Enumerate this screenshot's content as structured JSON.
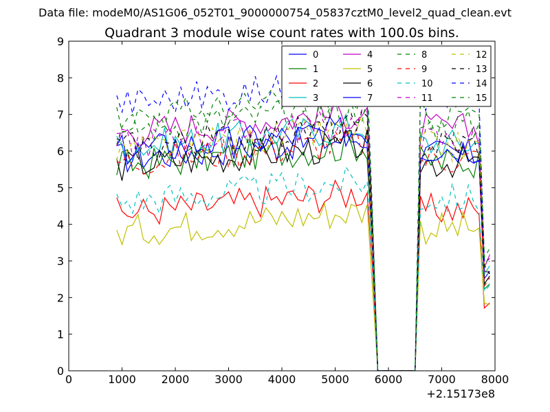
{
  "chart_data": {
    "type": "line",
    "suptitle": "Data file: modeM0/AS1G06_052T01_9000000754_05837cztM0_level2_quad_clean.evt",
    "title": "Quadrant 3 module wise count rates with 100.0s bins.",
    "xlabel": "",
    "ylabel": "",
    "x_offset_label": "+2.15173e8",
    "xlim": [
      0,
      8000
    ],
    "ylim": [
      0,
      9
    ],
    "x_ticks": [
      "0",
      "1000",
      "2000",
      "3000",
      "4000",
      "5000",
      "6000",
      "7000",
      "8000"
    ],
    "y_ticks": [
      "0",
      "1",
      "2",
      "3",
      "4",
      "5",
      "6",
      "7",
      "8",
      "9"
    ],
    "grid": false,
    "legend_position": "top-right",
    "gap": {
      "start": 5800,
      "end": 6500
    },
    "x_start": 900,
    "x_step": 100,
    "x_end": 7900,
    "series": [
      {
        "name": "0",
        "color": "#0000ff",
        "style": "solid",
        "base": 5.8
      },
      {
        "name": "1",
        "color": "#008000",
        "style": "solid",
        "base": 5.6
      },
      {
        "name": "2",
        "color": "#ff0000",
        "style": "solid",
        "base": 4.3
      },
      {
        "name": "3",
        "color": "#00bfbf",
        "style": "solid",
        "base": 6.1
      },
      {
        "name": "4",
        "color": "#bf00bf",
        "style": "solid",
        "base": 6.5
      },
      {
        "name": "5",
        "color": "#bfbf00",
        "style": "solid",
        "base": 3.8
      },
      {
        "name": "6",
        "color": "#000000",
        "style": "solid",
        "base": 5.6
      },
      {
        "name": "7",
        "color": "#0000ff",
        "style": "solid",
        "base": 6.0
      },
      {
        "name": "8",
        "color": "#008000",
        "style": "dashed",
        "base": 6.6
      },
      {
        "name": "9",
        "color": "#ff0000",
        "style": "dashed",
        "base": 5.7
      },
      {
        "name": "10",
        "color": "#00bfbf",
        "style": "dashed",
        "base": 4.6
      },
      {
        "name": "11",
        "color": "#bf00bf",
        "style": "dashed",
        "base": 6.2
      },
      {
        "name": "12",
        "color": "#bfbf00",
        "style": "dashed",
        "base": 6.0
      },
      {
        "name": "13",
        "color": "#000000",
        "style": "dashed",
        "base": 6.1
      },
      {
        "name": "14",
        "color": "#0000ff",
        "style": "dashed",
        "base": 7.3
      },
      {
        "name": "15",
        "color": "#008000",
        "style": "dashed",
        "base": 6.9
      }
    ]
  }
}
